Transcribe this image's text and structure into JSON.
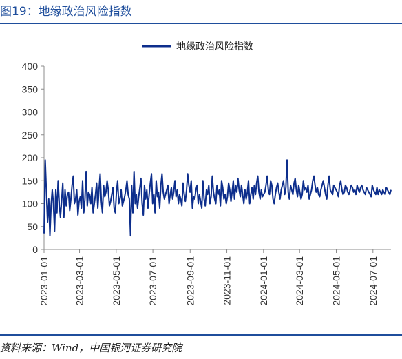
{
  "figure": {
    "title": "图19：地缘政治风险指数",
    "source": "资料来源：Wind，中国银河证券研究院"
  },
  "colors": {
    "series": "#0d2e8c",
    "accent": "#1f4e9c",
    "axis": "#8c8c8c"
  },
  "chart_data": {
    "type": "line",
    "title": "",
    "xlabel": "",
    "ylabel": "",
    "ylim": [
      0,
      400
    ],
    "yticks": [
      0,
      50,
      100,
      150,
      200,
      250,
      300,
      350,
      400
    ],
    "yticklabels": [
      "0",
      "50",
      "100",
      "150",
      "200",
      "250",
      "300",
      "350",
      "400"
    ],
    "xtick_labels": [
      "2023-01-01",
      "2023-03-01",
      "2023-05-01",
      "2023-07-01",
      "2023-09-01",
      "2023-11-01",
      "2024-01-01",
      "2024-03-01",
      "2024-05-01",
      "2024-07-01"
    ],
    "xtick_days": [
      0,
      59,
      120,
      181,
      243,
      304,
      365,
      425,
      486,
      547
    ],
    "x_start": "2023-01-01",
    "x_end": "2024-07-31",
    "grid": false,
    "legend": {
      "position": "top",
      "entries": [
        "地缘政治风险指数"
      ]
    },
    "series": [
      {
        "name": "地缘政治风险指数",
        "values": [
          35,
          195,
          125,
          60,
          110,
          30,
          95,
          130,
          100,
          40,
          130,
          80,
          150,
          100,
          70,
          105,
          145,
          70,
          130,
          95,
          120,
          125,
          85,
          110,
          140,
          160,
          100,
          110,
          130,
          75,
          105,
          115,
          90,
          150,
          80,
          110,
          170,
          95,
          125,
          120,
          100,
          135,
          80,
          100,
          120,
          145,
          90,
          130,
          165,
          105,
          80,
          140,
          115,
          125,
          150,
          130,
          95,
          105,
          120,
          135,
          90,
          80,
          125,
          150,
          100,
          110,
          130,
          95,
          105,
          115,
          130,
          150,
          120,
          110,
          30,
          140,
          80,
          170,
          100,
          120,
          90,
          115,
          135,
          155,
          100,
          75,
          140,
          110,
          130,
          90,
          120,
          145,
          165,
          100,
          120,
          80,
          150,
          115,
          125,
          90,
          140,
          165,
          125,
          110,
          120,
          130,
          140,
          100,
          120,
          135,
          110,
          125,
          150,
          115,
          130,
          100,
          120,
          110,
          95,
          145,
          120,
          105,
          130,
          165,
          140,
          125,
          150,
          90,
          115,
          110,
          130,
          140,
          100,
          120,
          105,
          90,
          150,
          110,
          95,
          130,
          120,
          140,
          100,
          115,
          160,
          125,
          110,
          100,
          140,
          120,
          130,
          95,
          150,
          135,
          110,
          120,
          100,
          115,
          145,
          130,
          105,
          125,
          150,
          110,
          140,
          125,
          155,
          130,
          115,
          140,
          120,
          100,
          130,
          110,
          125,
          150,
          100,
          120,
          135,
          110,
          140,
          120,
          145,
          160,
          125,
          110,
          130,
          115,
          120,
          125,
          140,
          160,
          130,
          120,
          150,
          140,
          110,
          100,
          120,
          135,
          145,
          125,
          110,
          130,
          140,
          150,
          120,
          135,
          195,
          125,
          110,
          140,
          130,
          120,
          145,
          155,
          130,
          115,
          140,
          125,
          110,
          120,
          150,
          130,
          135,
          125,
          140,
          110,
          120,
          130,
          150,
          160,
          140,
          125,
          135,
          120,
          115,
          130,
          140,
          150,
          135,
          120,
          110,
          140,
          160,
          130,
          125,
          120,
          140,
          135,
          130,
          125,
          115,
          140,
          150,
          130,
          120,
          125,
          140,
          135,
          125,
          120,
          130,
          140,
          135,
          125,
          130,
          120,
          140,
          130,
          125,
          135,
          140,
          130,
          125,
          120,
          135,
          130,
          125,
          120,
          115,
          140,
          130,
          125,
          120,
          135,
          120,
          130,
          125,
          120,
          130,
          125,
          120,
          135,
          130,
          125,
          120,
          130
        ]
      }
    ]
  }
}
